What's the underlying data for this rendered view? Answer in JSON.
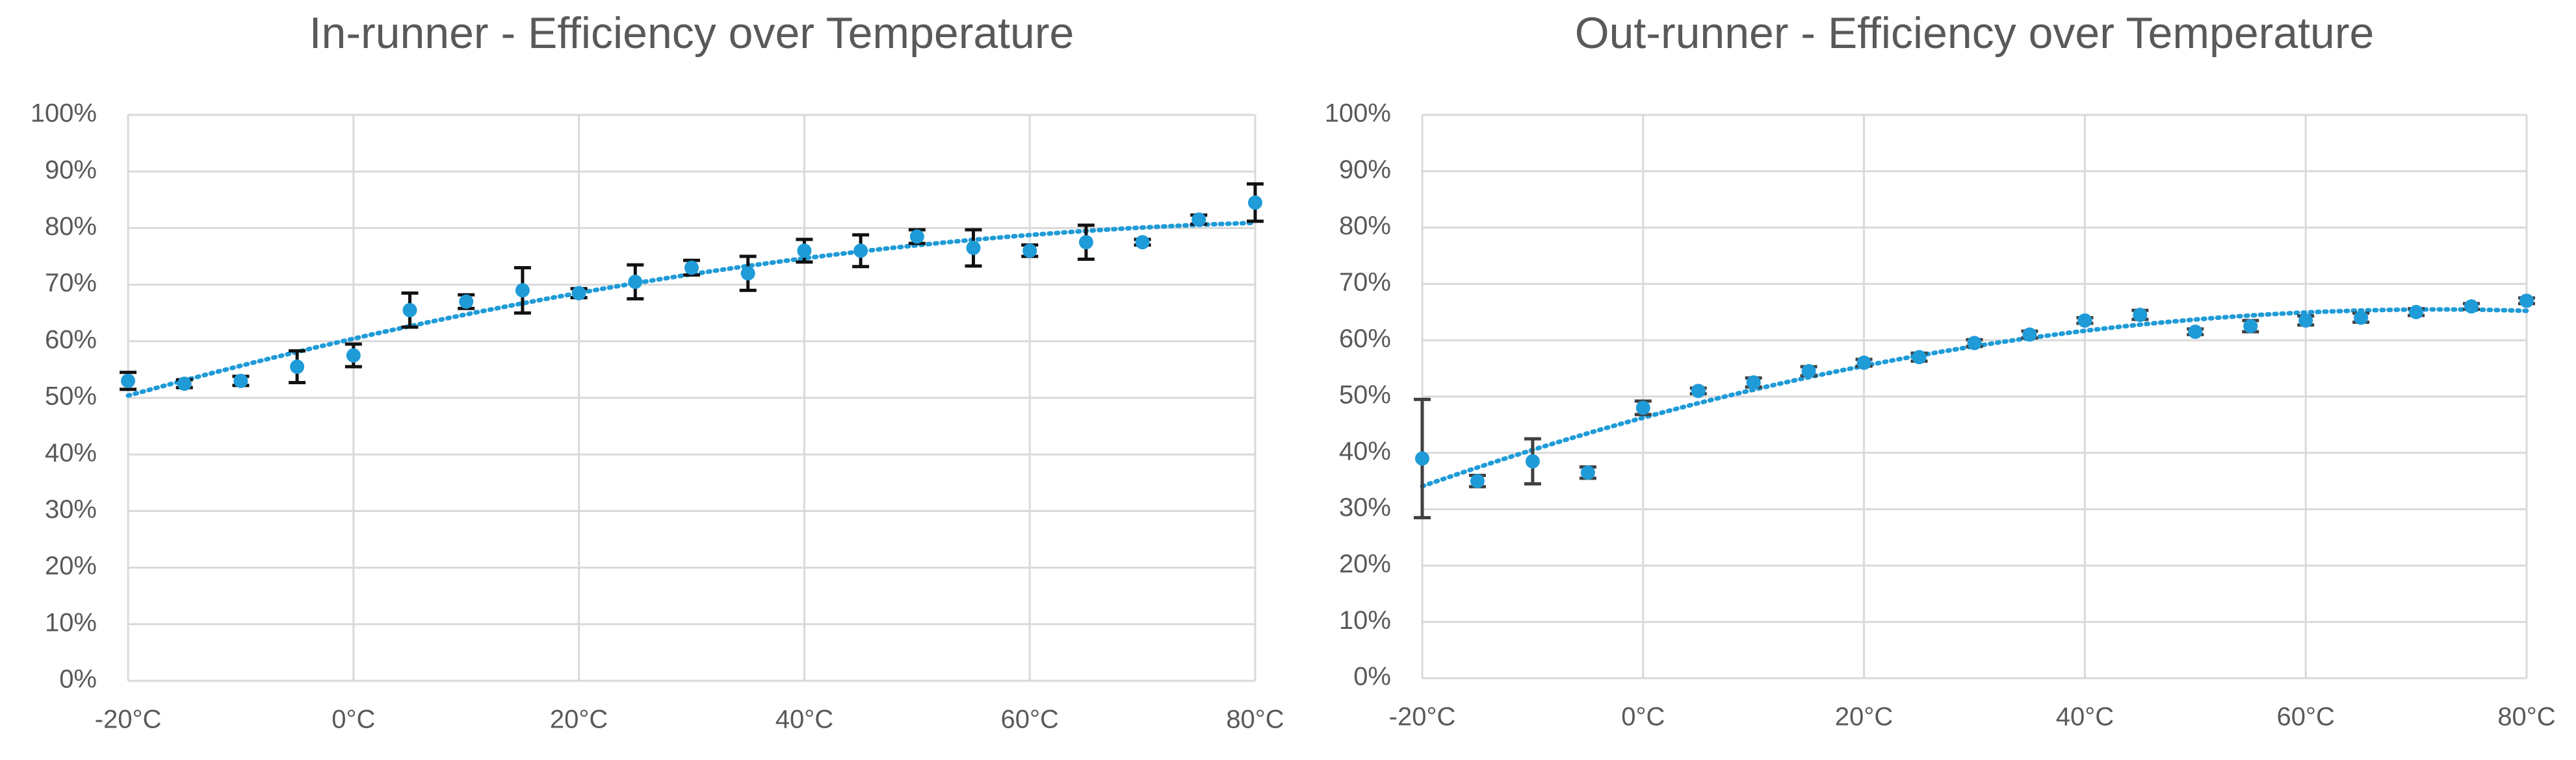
{
  "chart_data": [
    {
      "type": "scatter",
      "title": "In-runner - Efficiency over Temperature",
      "x": [
        -20,
        -15,
        -10,
        -5,
        0,
        5,
        10,
        15,
        20,
        25,
        30,
        35,
        40,
        45,
        50,
        55,
        60,
        65,
        70,
        75,
        80
      ],
      "values": [
        53,
        52.5,
        53,
        55.5,
        57.5,
        65.5,
        67,
        69,
        68.5,
        70.5,
        73,
        72,
        76,
        76,
        78.5,
        76.5,
        76,
        77.5,
        77.5,
        81.5,
        84.5
      ],
      "errors": [
        1.5,
        0.7,
        0.8,
        2.8,
        2,
        3,
        1.2,
        4,
        0.8,
        3,
        1.3,
        3,
        2,
        2.8,
        1.2,
        3.2,
        1,
        3,
        0.5,
        0.8,
        3.3
      ],
      "color": "#1f9bd7",
      "error_color": "#111111",
      "trendline": {
        "type": "polynomial",
        "order": 2
      },
      "xlim": [
        -20,
        80
      ],
      "xticks": [
        {
          "value": -20,
          "label": "-20°C"
        },
        {
          "value": 0,
          "label": "0°C"
        },
        {
          "value": 20,
          "label": "20°C"
        },
        {
          "value": 40,
          "label": "40°C"
        },
        {
          "value": 60,
          "label": "60°C"
        },
        {
          "value": 80,
          "label": "80°C"
        }
      ],
      "ylim": [
        0,
        100
      ],
      "yticks": [
        {
          "value": 0,
          "label": "0%"
        },
        {
          "value": 10,
          "label": "10%"
        },
        {
          "value": 20,
          "label": "20%"
        },
        {
          "value": 30,
          "label": "30%"
        },
        {
          "value": 40,
          "label": "40%"
        },
        {
          "value": 50,
          "label": "50%"
        },
        {
          "value": 60,
          "label": "60%"
        },
        {
          "value": 70,
          "label": "70%"
        },
        {
          "value": 80,
          "label": "80%"
        },
        {
          "value": 90,
          "label": "90%"
        },
        {
          "value": 100,
          "label": "100%"
        }
      ],
      "grid": true
    },
    {
      "type": "scatter",
      "title": "Out-runner - Efficiency over Temperature",
      "x": [
        -20,
        -15,
        -10,
        -5,
        0,
        5,
        10,
        15,
        20,
        25,
        30,
        35,
        40,
        45,
        50,
        55,
        60,
        65,
        70,
        75,
        80
      ],
      "values": [
        39,
        35,
        38.5,
        36.5,
        48,
        51,
        52.5,
        54.5,
        56,
        57,
        59.5,
        61,
        63.5,
        64.5,
        61.5,
        62.5,
        63.5,
        64,
        65,
        66,
        67
      ],
      "errors": [
        10.5,
        1,
        4,
        1,
        1.2,
        0.5,
        0.8,
        0.8,
        0.6,
        0.7,
        0.6,
        0.6,
        0.5,
        0.8,
        0.5,
        1,
        0.8,
        0.8,
        0.6,
        0.5,
        0.5
      ],
      "color": "#1f9bd7",
      "error_color": "#404040",
      "trendline": {
        "type": "polynomial",
        "order": 2
      },
      "xlim": [
        -20,
        80
      ],
      "xticks": [
        {
          "value": -20,
          "label": "-20°C"
        },
        {
          "value": 0,
          "label": "0°C"
        },
        {
          "value": 20,
          "label": "20°C"
        },
        {
          "value": 40,
          "label": "40°C"
        },
        {
          "value": 60,
          "label": "60°C"
        },
        {
          "value": 80,
          "label": "80°C"
        }
      ],
      "ylim": [
        0,
        100
      ],
      "yticks": [
        {
          "value": 0,
          "label": "0%"
        },
        {
          "value": 10,
          "label": "10%"
        },
        {
          "value": 20,
          "label": "20%"
        },
        {
          "value": 30,
          "label": "30%"
        },
        {
          "value": 40,
          "label": "40%"
        },
        {
          "value": 50,
          "label": "50%"
        },
        {
          "value": 60,
          "label": "60%"
        },
        {
          "value": 70,
          "label": "70%"
        },
        {
          "value": 80,
          "label": "80%"
        },
        {
          "value": 90,
          "label": "90%"
        },
        {
          "value": 100,
          "label": "100%"
        }
      ],
      "grid": true
    }
  ]
}
